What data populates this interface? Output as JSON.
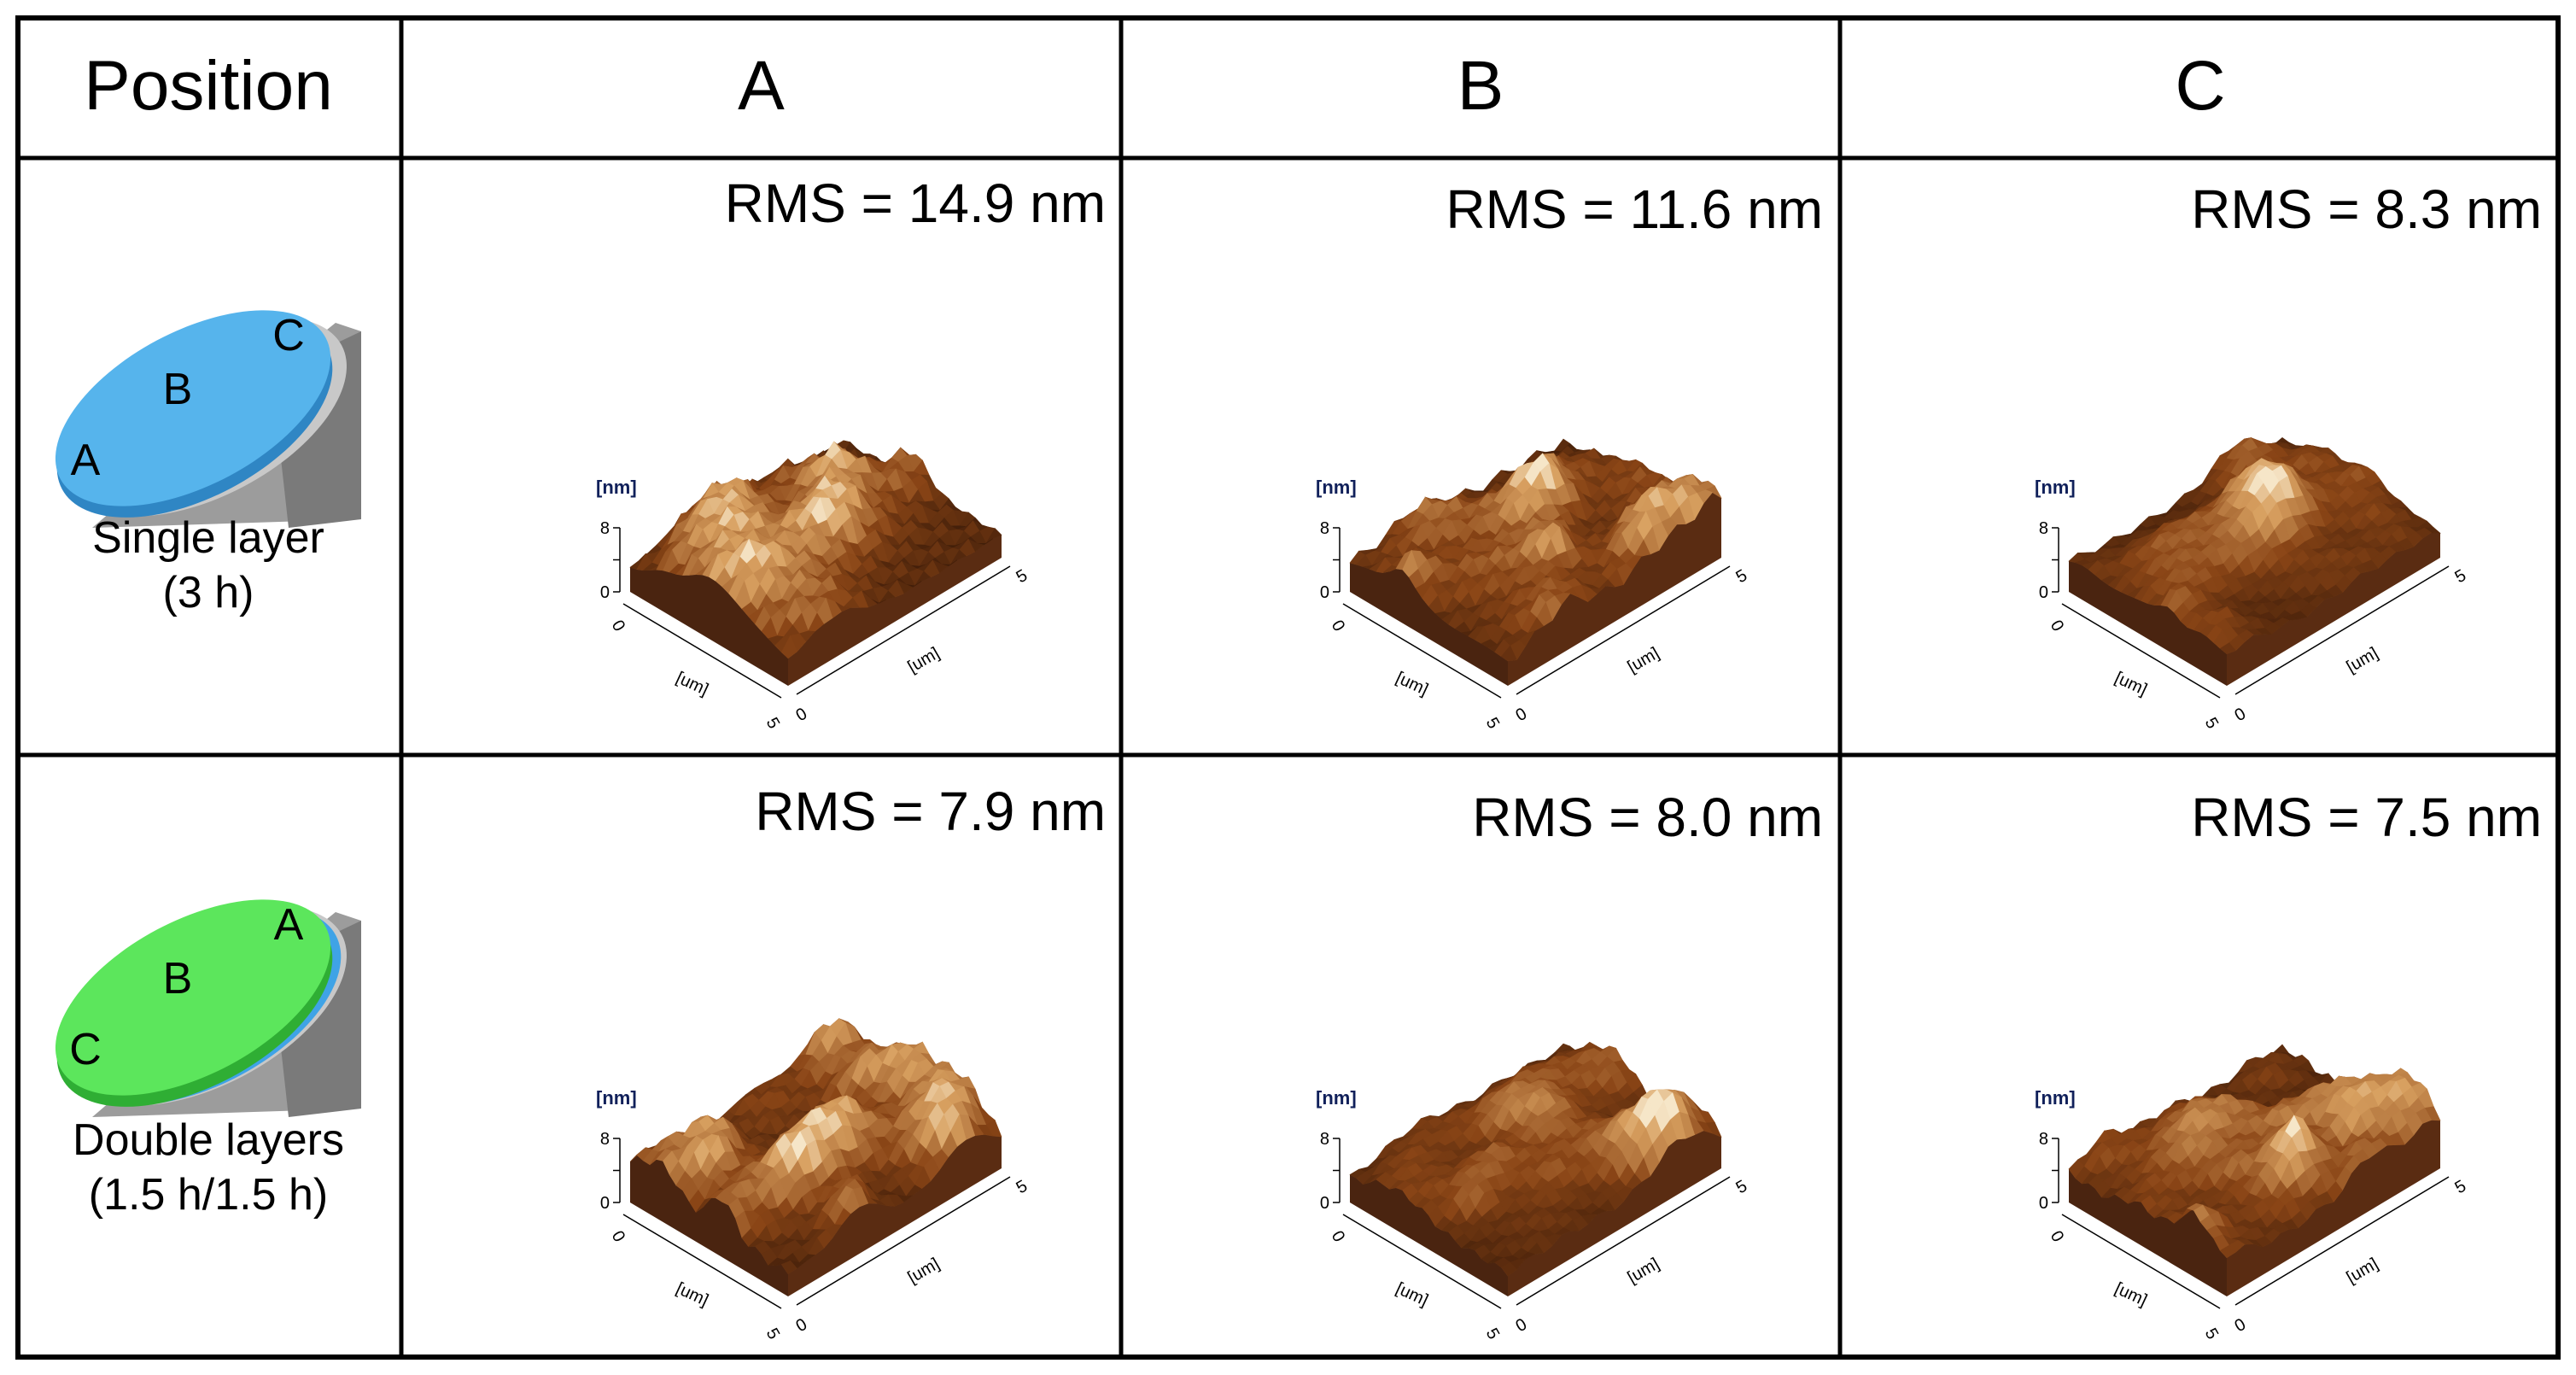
{
  "table": {
    "header": {
      "position_label": "Position",
      "columns": [
        "A",
        "B",
        "C"
      ]
    },
    "rows": [
      {
        "label_line1": "Single layer",
        "label_line2": "(3 h)",
        "disc": {
          "letters": [
            "C",
            "B",
            "A"
          ],
          "top_color": "#56b4ec",
          "edge_color": "#2f86c4",
          "layers": 1
        },
        "cells": [
          {
            "rms": "RMS = 14.9 nm",
            "roughness_nm": 14.9
          },
          {
            "rms": "RMS = 11.6 nm",
            "roughness_nm": 11.6
          },
          {
            "rms": "RMS = 8.3 nm",
            "roughness_nm": 8.3
          }
        ]
      },
      {
        "label_line1": "Double layers",
        "label_line2": "(1.5 h/1.5 h)",
        "disc": {
          "letters": [
            "A",
            "B",
            "C"
          ],
          "top_color": "#5ce65c",
          "edge_color": "#2fae34",
          "layers": 2
        },
        "cells": [
          {
            "rms": "RMS = 7.9 nm",
            "roughness_nm": 7.9
          },
          {
            "rms": "RMS = 8.0 nm",
            "roughness_nm": 8.0
          },
          {
            "rms": "RMS = 7.5 nm",
            "roughness_nm": 7.5
          }
        ]
      }
    ]
  },
  "afm_axes": {
    "z_unit": "[nm]",
    "xy_unit": "[um]",
    "z_ticks": [
      "8",
      "4",
      "0"
    ],
    "xy_start": "0",
    "xy_end": "5"
  },
  "colors": {
    "surface_dark": "#3a1a08",
    "surface_mid": "#8a4516",
    "surface_light": "#d8a060",
    "surface_highlight": "#f6e6c8",
    "base_side": "#4a2410",
    "grid_line": "#000000"
  }
}
